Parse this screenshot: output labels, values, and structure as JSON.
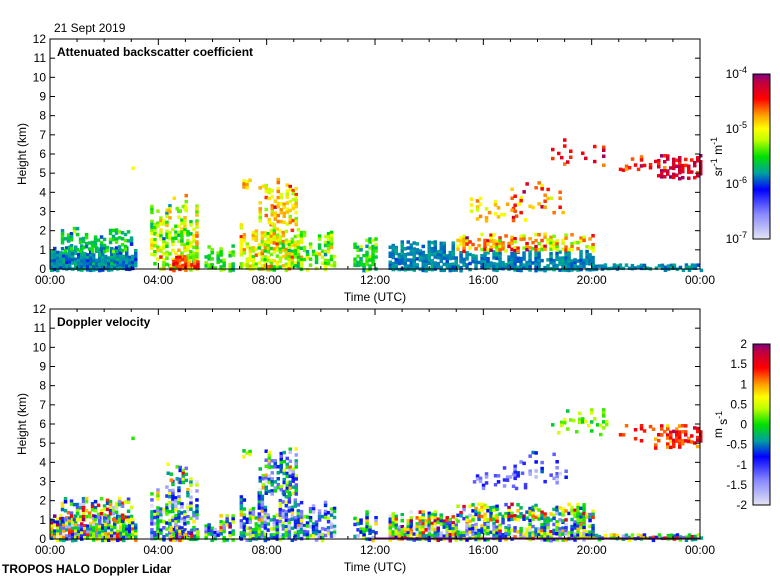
{
  "date_label": "21 Sept 2019",
  "footer": "TROPOS HALO Doppler Lidar",
  "chart_data": [
    {
      "type": "heatmap",
      "title": "Attenuated backscatter coefficient",
      "xlabel": "Time (UTC)",
      "ylabel": "Height (km)",
      "xlim": [
        0,
        24
      ],
      "ylim": [
        0,
        12
      ],
      "xticks": [
        "00:00",
        "04:00",
        "08:00",
        "12:00",
        "16:00",
        "20:00",
        "00:00"
      ],
      "yticks": [
        "0",
        "1",
        "2",
        "3",
        "4",
        "5",
        "6",
        "7",
        "8",
        "9",
        "10",
        "11",
        "12"
      ],
      "colorbar": {
        "unit": "sr-1 m-1",
        "unit_base": [
          "sr",
          " m"
        ],
        "unit_exp": [
          "-1",
          "-1"
        ],
        "scale": "log",
        "range": [
          1e-07,
          0.0001
        ],
        "ticks": [
          {
            "base": "10",
            "exp": "-4"
          },
          {
            "base": "10",
            "exp": "-5"
          },
          {
            "base": "10",
            "exp": "-6"
          },
          {
            "base": "10",
            "exp": "-7"
          }
        ]
      },
      "value_key": "log10_beta"
    },
    {
      "type": "heatmap",
      "title": "Doppler velocity",
      "xlabel": "Time (UTC)",
      "ylabel": "Height (km)",
      "xlim": [
        0,
        24
      ],
      "ylim": [
        0,
        12
      ],
      "xticks": [
        "00:00",
        "04:00",
        "08:00",
        "12:00",
        "16:00",
        "20:00",
        "00:00"
      ],
      "yticks": [
        "0",
        "1",
        "2",
        "3",
        "4",
        "5",
        "6",
        "7",
        "8",
        "9",
        "10",
        "11",
        "12"
      ],
      "colorbar": {
        "unit": "m s-1",
        "unit_base": [
          "m",
          " s"
        ],
        "unit_exp": [
          "",
          "-1"
        ],
        "scale": "linear",
        "range": [
          -2,
          2
        ],
        "ticks": [
          "2",
          "1.5",
          "1",
          "0.5",
          "0",
          "-0.5",
          "-1",
          "-1.5",
          "-2"
        ]
      },
      "value_key": "velocity_ms"
    }
  ],
  "features": {
    "columns": [
      "t_start_h",
      "t_end_h",
      "z_base_km",
      "z_top_km",
      "fill_fraction",
      "log10_beta",
      "beta_spread",
      "velocity_ms",
      "velocity_spread"
    ],
    "rows": [
      [
        0.0,
        3.2,
        0.0,
        1.3,
        0.95,
        -5.85,
        0.15,
        0.0,
        1.6
      ],
      [
        0.4,
        3.0,
        1.0,
        2.2,
        0.55,
        -5.6,
        0.3,
        0.0,
        1.5
      ],
      [
        3.0,
        3.05,
        5.2,
        5.35,
        1.0,
        -5.0,
        0.1,
        0.3,
        0.2
      ],
      [
        3.7,
        5.4,
        0.0,
        3.4,
        0.6,
        -5.2,
        0.5,
        -0.6,
        1.4
      ],
      [
        4.3,
        5.0,
        3.0,
        4.0,
        0.45,
        -5.0,
        0.4,
        0.0,
        1.2
      ],
      [
        4.4,
        5.4,
        0.0,
        0.7,
        0.8,
        -4.6,
        0.3,
        0.0,
        1.6
      ],
      [
        5.7,
        6.8,
        0.0,
        1.3,
        0.6,
        -5.5,
        0.3,
        -0.2,
        1.4
      ],
      [
        7.0,
        9.3,
        0.0,
        2.5,
        0.7,
        -5.1,
        0.5,
        -0.6,
        1.4
      ],
      [
        7.1,
        7.4,
        4.3,
        4.9,
        0.6,
        -4.9,
        0.2,
        0.5,
        0.5
      ],
      [
        7.7,
        9.1,
        2.4,
        4.8,
        0.5,
        -4.9,
        0.4,
        -0.6,
        1.2
      ],
      [
        9.0,
        10.5,
        0.0,
        2.0,
        0.6,
        -5.3,
        0.4,
        -0.8,
        1.2
      ],
      [
        11.2,
        12.0,
        0.0,
        1.7,
        0.55,
        -5.5,
        0.3,
        -0.5,
        1.3
      ],
      [
        12.5,
        15.0,
        0.0,
        1.5,
        0.85,
        -5.85,
        0.1,
        0.0,
        1.7
      ],
      [
        15.0,
        20.0,
        0.0,
        1.0,
        0.85,
        -5.85,
        0.1,
        -0.3,
        1.5
      ],
      [
        15.0,
        20.0,
        1.0,
        1.9,
        0.6,
        -4.8,
        0.6,
        0.2,
        1.5
      ],
      [
        15.5,
        17.5,
        2.6,
        3.8,
        0.2,
        -4.8,
        0.4,
        -1.2,
        0.4
      ],
      [
        17.0,
        19.0,
        3.0,
        4.6,
        0.2,
        -4.6,
        0.4,
        -1.2,
        0.6
      ],
      [
        18.5,
        20.5,
        5.5,
        7.0,
        0.15,
        -4.5,
        0.3,
        0.2,
        0.4
      ],
      [
        20.0,
        24.0,
        0.0,
        0.3,
        0.8,
        -5.85,
        0.1,
        0.0,
        1.6
      ],
      [
        21.0,
        22.3,
        5.2,
        6.0,
        0.2,
        -4.5,
        0.3,
        1.3,
        0.3
      ],
      [
        22.3,
        24.0,
        4.8,
        6.0,
        0.55,
        -4.3,
        0.3,
        1.3,
        0.4
      ]
    ]
  }
}
